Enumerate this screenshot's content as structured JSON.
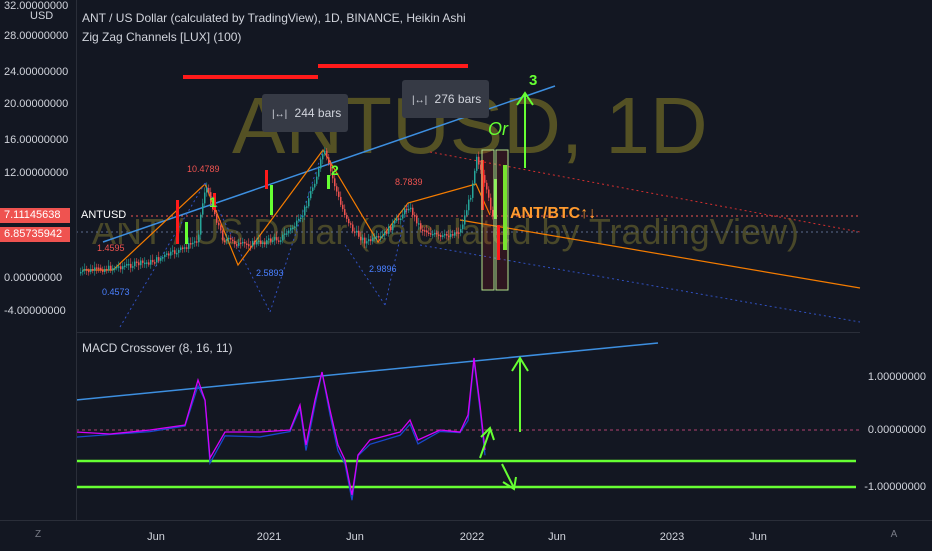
{
  "header": {
    "title": "ANT / US Dollar (calculated by TradingView), 1D, BINANCE, Heikin Ashi",
    "indicator": "Zig Zag Channels [LUX] (100)",
    "macd_title": "MACD Crossover (8, 16, 11)"
  },
  "watermark": {
    "symbol": "ANTUSD, 1D",
    "description": "ANT / US Dollar (calculated by TradingView)"
  },
  "y_axis": {
    "unit": "USD",
    "labels": [
      "32.00000000",
      "28.00000000",
      "24.00000000",
      "20.00000000",
      "16.00000000",
      "12.00000000",
      "0.00000000",
      "-4.00000000"
    ],
    "price_tag_1": "7.11145638",
    "price_tag_2": "6.85735942",
    "symbol_tag": "ANTUSD"
  },
  "macd_axis": {
    "labels": [
      "1.00000000",
      "0.00000000",
      "-1.00000000"
    ]
  },
  "x_axis": {
    "labels": [
      "Jun",
      "2021",
      "Jun",
      "2022",
      "Jun",
      "2023",
      "Jun"
    ]
  },
  "annotations": {
    "bars1": "244 bars",
    "bars2": "276 bars",
    "wave1": "1",
    "wave2": "2",
    "wave3": "3",
    "or": "Or",
    "ant_btc": "ANT/BTC↑↓",
    "pivot_low_1": "1.4595",
    "pivot_low_2": "0.4573",
    "pivot_high_1": "10.4789",
    "pivot_low_3": "2.5893",
    "pivot_high_2": "8.7839",
    "pivot_low_4": "2.9896"
  },
  "buttons": {
    "zoom_left": "Z",
    "zoom_right": "A"
  },
  "colors": {
    "background": "#131722",
    "up": "#26a69a",
    "down": "#ef5350",
    "trend": "#2962ff",
    "zigzag": "#f57c00",
    "signal_green": "#66ff33",
    "signal_red": "#ff1a1a",
    "macd_line": "#d500f9",
    "macd_signal": "#1848cc"
  }
}
